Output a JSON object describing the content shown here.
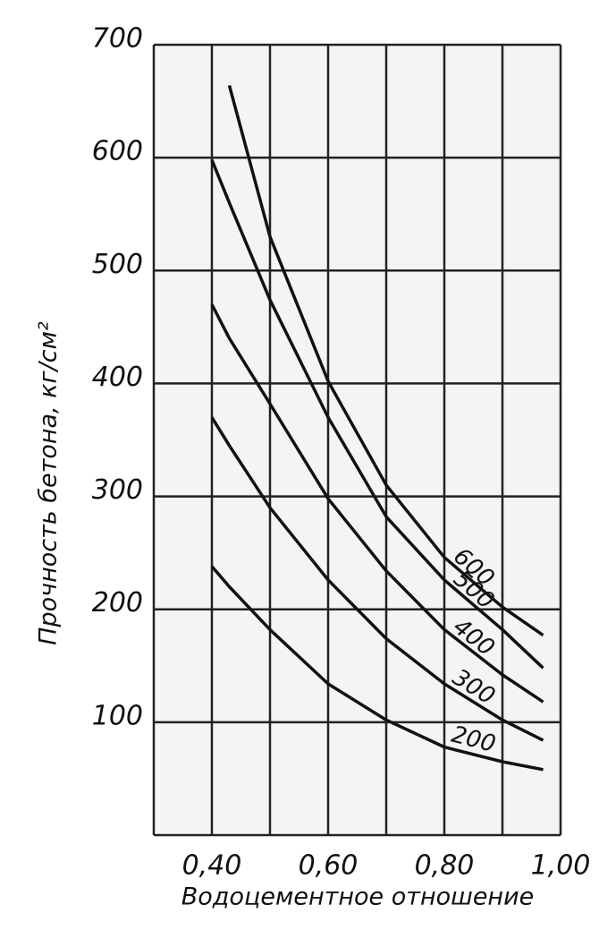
{
  "chart_data": {
    "type": "line",
    "x_label": "Водоцементное отношение",
    "y_label": "Прочность бетона, кг/см²",
    "x": [
      0.4,
      0.43,
      0.5,
      0.6,
      0.7,
      0.8,
      0.9,
      0.97
    ],
    "series": [
      {
        "name": "600",
        "color": "#111111",
        "values": [
          null,
          664,
          530,
          402,
          310,
          246,
          202,
          177
        ]
      },
      {
        "name": "500",
        "color": "#111111",
        "values": [
          598,
          560,
          474,
          370,
          282,
          226,
          182,
          148
        ]
      },
      {
        "name": "400",
        "color": "#111111",
        "values": [
          470,
          440,
          382,
          298,
          234,
          182,
          142,
          118
        ]
      },
      {
        "name": "300",
        "color": "#111111",
        "values": [
          370,
          345,
          290,
          226,
          174,
          134,
          102,
          84
        ]
      },
      {
        "name": "200",
        "color": "#111111",
        "values": [
          238,
          220,
          182,
          134,
          102,
          78,
          65,
          58
        ]
      }
    ],
    "xlim": [
      0.3,
      1.0
    ],
    "xticks": [
      {
        "value": 0.4,
        "label": "0,40"
      },
      {
        "value": 0.6,
        "label": "0,60"
      },
      {
        "value": 0.8,
        "label": "0,80"
      },
      {
        "value": 1.0,
        "label": "1,00"
      }
    ],
    "xgrid": [
      0.3,
      0.4,
      0.5,
      0.6,
      0.7,
      0.8,
      0.9,
      1.0
    ],
    "ylim": [
      0,
      700
    ],
    "yticks": [
      100,
      200,
      300,
      400,
      500,
      600,
      700
    ],
    "grid": true
  }
}
